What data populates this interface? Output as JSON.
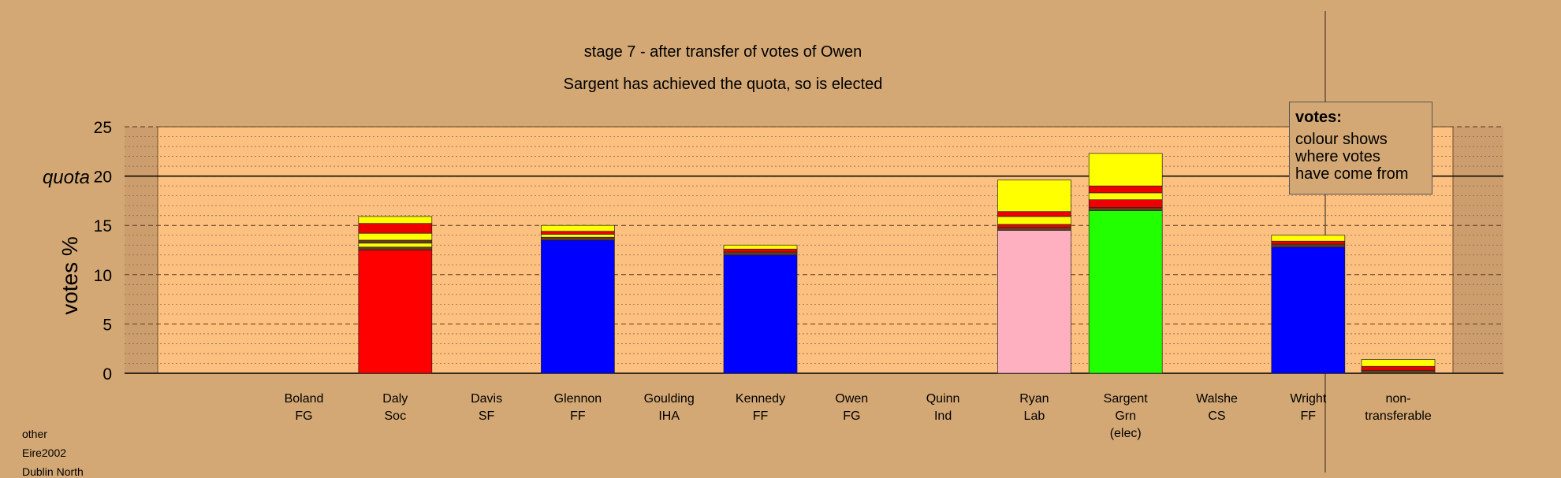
{
  "footer_notes": [
    "other",
    "Eire2002",
    "Dublin North"
  ],
  "legend": {
    "title": "votes:",
    "text": "colour shows\nwhere votes\nhave come from"
  },
  "colors": {
    "background": "#d4a874",
    "plot_fill": "#fcc080",
    "soc": "#ff0000",
    "ff": "#0000ff",
    "lab": "#ffb0c0",
    "grn": "#22ff00",
    "transfer_yellow": "#ffff00",
    "transfer_red": "#ee0000",
    "transfer_brown": "#6b3a1a"
  },
  "chart_data": {
    "type": "bar",
    "title": "stage 7 - after transfer of votes of Owen",
    "subtitle": "Sargent has achieved the quota, so is elected",
    "ylabel": "votes %",
    "quota_label": "quota",
    "quota_value": 20,
    "ylim": [
      0,
      25
    ],
    "yticks": [
      "0",
      "5",
      "10",
      "15",
      "20",
      "25"
    ],
    "categories": [
      {
        "name": "Boland",
        "party": "FG",
        "note": ""
      },
      {
        "name": "Daly",
        "party": "Soc",
        "note": ""
      },
      {
        "name": "Davis",
        "party": "SF",
        "note": ""
      },
      {
        "name": "Glennon",
        "party": "FF",
        "note": ""
      },
      {
        "name": "Goulding",
        "party": "IHA",
        "note": ""
      },
      {
        "name": "Kennedy",
        "party": "FF",
        "note": ""
      },
      {
        "name": "Owen",
        "party": "FG",
        "note": ""
      },
      {
        "name": "Quinn",
        "party": "Ind",
        "note": ""
      },
      {
        "name": "Ryan",
        "party": "Lab",
        "note": ""
      },
      {
        "name": "Sargent",
        "party": "Grn",
        "note": "(elec)"
      },
      {
        "name": "Walshe",
        "party": "CS",
        "note": ""
      },
      {
        "name": "Wright",
        "party": "FF",
        "note": ""
      },
      {
        "name": "non-",
        "party": "transferable",
        "note": ""
      }
    ],
    "stacks": [
      [],
      [
        {
          "value": 12.5,
          "color": "#ff0000"
        },
        {
          "value": 0.3,
          "color": "#6b3a1a"
        },
        {
          "value": 0.4,
          "color": "#ffff00"
        },
        {
          "value": 0.3,
          "color": "#6b3a1a"
        },
        {
          "value": 0.7,
          "color": "#ffff00"
        },
        {
          "value": 1.0,
          "color": "#ee0000"
        },
        {
          "value": 0.7,
          "color": "#ffff00"
        }
      ],
      [],
      [
        {
          "value": 13.5,
          "color": "#0000ff"
        },
        {
          "value": 0.3,
          "color": "#6b3a1a"
        },
        {
          "value": 0.3,
          "color": "#ffff00"
        },
        {
          "value": 0.3,
          "color": "#ee0000"
        },
        {
          "value": 0.6,
          "color": "#ffff00"
        }
      ],
      [],
      [
        {
          "value": 12.0,
          "color": "#0000ff"
        },
        {
          "value": 0.3,
          "color": "#6b3a1a"
        },
        {
          "value": 0.3,
          "color": "#ee0000"
        },
        {
          "value": 0.4,
          "color": "#ffff00"
        }
      ],
      [],
      [],
      [
        {
          "value": 14.5,
          "color": "#ffb0c0"
        },
        {
          "value": 0.3,
          "color": "#6b3a1a"
        },
        {
          "value": 0.3,
          "color": "#ee0000"
        },
        {
          "value": 0.8,
          "color": "#ffff00"
        },
        {
          "value": 0.5,
          "color": "#ee0000"
        },
        {
          "value": 3.2,
          "color": "#ffff00"
        }
      ],
      [
        {
          "value": 16.5,
          "color": "#22ff00"
        },
        {
          "value": 0.3,
          "color": "#6b3a1a"
        },
        {
          "value": 0.8,
          "color": "#ee0000"
        },
        {
          "value": 0.7,
          "color": "#ffff00"
        },
        {
          "value": 0.7,
          "color": "#ee0000"
        },
        {
          "value": 3.3,
          "color": "#ffff00"
        }
      ],
      [],
      [
        {
          "value": 12.8,
          "color": "#0000ff"
        },
        {
          "value": 0.3,
          "color": "#6b3a1a"
        },
        {
          "value": 0.3,
          "color": "#ee0000"
        },
        {
          "value": 0.6,
          "color": "#ffff00"
        }
      ],
      [
        {
          "value": 0.3,
          "color": "#6b3a1a"
        },
        {
          "value": 0.4,
          "color": "#ee0000"
        },
        {
          "value": 0.7,
          "color": "#ffff00"
        }
      ]
    ],
    "grid": true
  }
}
